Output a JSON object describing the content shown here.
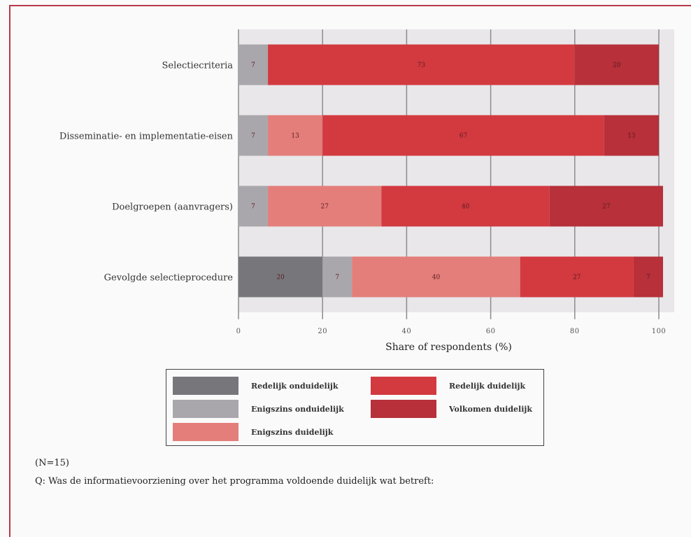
{
  "chart_data": {
    "type": "bar",
    "orientation": "horizontal",
    "stacked": true,
    "categories": [
      "Selectiecriteria",
      "Disseminatie- en implementatie-eisen",
      "Doelgroepen (aanvragers)",
      "Gevolgde selectieprocedure"
    ],
    "series": [
      {
        "name": "Redelijk onduidelijk",
        "color": "#77777b",
        "values": [
          0,
          0,
          0,
          20
        ],
        "labels": [
          "",
          "",
          "",
          "20"
        ]
      },
      {
        "name": "Enigszins onduidelijk",
        "color": "#a9a7ab",
        "values": [
          7,
          7,
          7,
          7
        ],
        "labels": [
          "7",
          "7",
          "7",
          "7"
        ]
      },
      {
        "name": "Enigszins duidelijk",
        "color": "#e47e7a",
        "values": [
          0,
          13,
          27,
          40
        ],
        "labels": [
          "",
          "13",
          "27",
          "40"
        ]
      },
      {
        "name": "Redelijk duidelijk",
        "color": "#d23a40",
        "values": [
          73,
          67,
          40,
          27
        ],
        "labels": [
          "73",
          "67",
          "40",
          "27"
        ]
      },
      {
        "name": "Volkomen duidelijk",
        "color": "#b7303a",
        "values": [
          20,
          13,
          27,
          7
        ],
        "labels": [
          "20",
          "13",
          "27",
          "7"
        ]
      }
    ],
    "xlabel": "Share of respondents (%)",
    "xlim": [
      0,
      100
    ],
    "xticks": [
      "0",
      "20",
      "40",
      "60",
      "80",
      "100"
    ],
    "grid": true,
    "legend_position": "bottom"
  },
  "legend": {
    "items": [
      {
        "label": "Redelijk onduidelijk",
        "color": "#77777b"
      },
      {
        "label": "Enigszins onduidelijk",
        "color": "#a9a7ab"
      },
      {
        "label": "Enigszins duidelijk",
        "color": "#e47e7a"
      },
      {
        "label": "Redelijk duidelijk",
        "color": "#d23a40"
      },
      {
        "label": "Volkomen duidelijk",
        "color": "#b7303a"
      }
    ]
  },
  "notes": {
    "n": "(N=15)",
    "question": "Q: Was de informatievoorziening over het programma voldoende duidelijk wat betreft:"
  }
}
